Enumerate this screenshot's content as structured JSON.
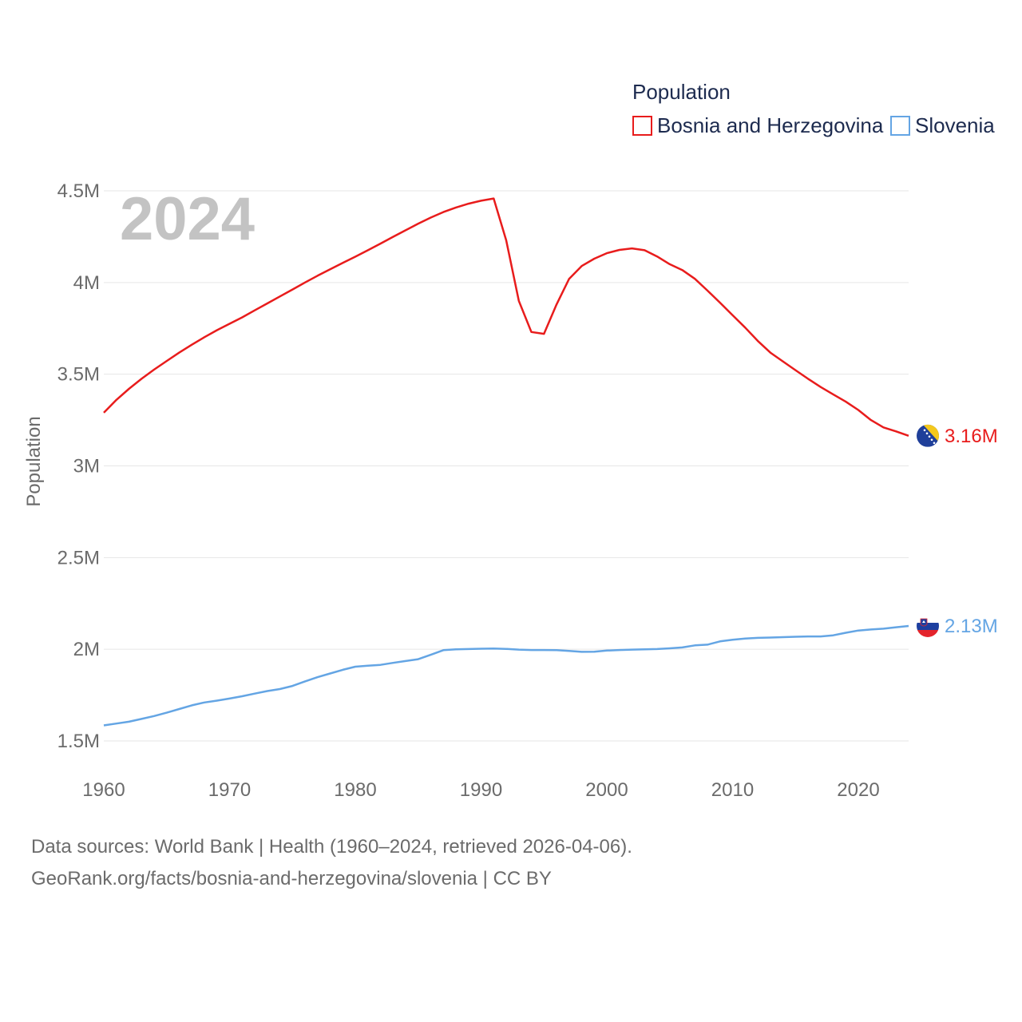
{
  "chart_data": {
    "type": "line",
    "legend_title": "Population",
    "ylabel": "Population",
    "year_label": "2024",
    "ylim": [
      1350000,
      4600000
    ],
    "xlim": [
      1960,
      2024
    ],
    "y_ticks": [
      {
        "value": 1500000,
        "label": "1.5M"
      },
      {
        "value": 2000000,
        "label": "2M"
      },
      {
        "value": 2500000,
        "label": "2.5M"
      },
      {
        "value": 3000000,
        "label": "3M"
      },
      {
        "value": 3500000,
        "label": "3.5M"
      },
      {
        "value": 4000000,
        "label": "4M"
      },
      {
        "value": 4500000,
        "label": "4.5M"
      }
    ],
    "x_ticks": [
      {
        "value": 1960,
        "label": "1960"
      },
      {
        "value": 1970,
        "label": "1970"
      },
      {
        "value": 1980,
        "label": "1980"
      },
      {
        "value": 1990,
        "label": "1990"
      },
      {
        "value": 2000,
        "label": "2000"
      },
      {
        "value": 2010,
        "label": "2010"
      },
      {
        "value": 2020,
        "label": "2020"
      }
    ],
    "x": [
      1960,
      1961,
      1962,
      1963,
      1964,
      1965,
      1966,
      1967,
      1968,
      1969,
      1970,
      1971,
      1972,
      1973,
      1974,
      1975,
      1976,
      1977,
      1978,
      1979,
      1980,
      1981,
      1982,
      1983,
      1984,
      1985,
      1986,
      1987,
      1988,
      1989,
      1990,
      1991,
      1992,
      1993,
      1994,
      1995,
      1996,
      1997,
      1998,
      1999,
      2000,
      2001,
      2002,
      2003,
      2004,
      2005,
      2006,
      2007,
      2008,
      2009,
      2010,
      2011,
      2012,
      2013,
      2014,
      2015,
      2016,
      2017,
      2018,
      2019,
      2020,
      2021,
      2022,
      2023,
      2024
    ],
    "series": [
      {
        "name": "Bosnia and Herzegovina",
        "color": "#e81c1c",
        "end_label": "3.16M",
        "values": [
          3290000,
          3360000,
          3420000,
          3475000,
          3525000,
          3572000,
          3618000,
          3661000,
          3702000,
          3740000,
          3775000,
          3810000,
          3848000,
          3886000,
          3924000,
          3962000,
          4000000,
          4037000,
          4072000,
          4107000,
          4141000,
          4176000,
          4212000,
          4249000,
          4285000,
          4321000,
          4354000,
          4384000,
          4409000,
          4430000,
          4446000,
          4458000,
          4230000,
          3900000,
          3730000,
          3720000,
          3880000,
          4020000,
          4090000,
          4130000,
          4160000,
          4178000,
          4186000,
          4176000,
          4142000,
          4100000,
          4068000,
          4020000,
          3956000,
          3890000,
          3822000,
          3754000,
          3682000,
          3618000,
          3570000,
          3522000,
          3475000,
          3430000,
          3390000,
          3350000,
          3305000,
          3250000,
          3210000,
          3188000,
          3164000
        ]
      },
      {
        "name": "Slovenia",
        "color": "#64a5e4",
        "end_label": "2.13M",
        "values": [
          1585000,
          1595000,
          1605000,
          1620000,
          1636000,
          1654000,
          1674000,
          1694000,
          1710000,
          1720000,
          1731000,
          1744000,
          1758000,
          1772000,
          1783000,
          1800000,
          1825000,
          1848000,
          1868000,
          1888000,
          1905000,
          1910000,
          1915000,
          1926000,
          1936000,
          1946000,
          1970000,
          1995000,
          2000000,
          2001000,
          2003000,
          2004000,
          2002000,
          1998000,
          1996000,
          1996000,
          1995000,
          1991000,
          1986000,
          1987000,
          1993000,
          1996000,
          1998000,
          2000000,
          2001000,
          2005000,
          2010000,
          2021000,
          2025000,
          2043000,
          2052000,
          2058000,
          2062000,
          2064000,
          2066000,
          2068000,
          2070000,
          2070000,
          2076000,
          2090000,
          2102000,
          2108000,
          2112000,
          2120000,
          2127000
        ]
      }
    ]
  },
  "source_line1": "Data sources: World Bank | Health (1960–2024, retrieved 2026-04-06).",
  "source_line2": "GeoRank.org/facts/bosnia-and-herzegovina/slovenia | CC BY"
}
